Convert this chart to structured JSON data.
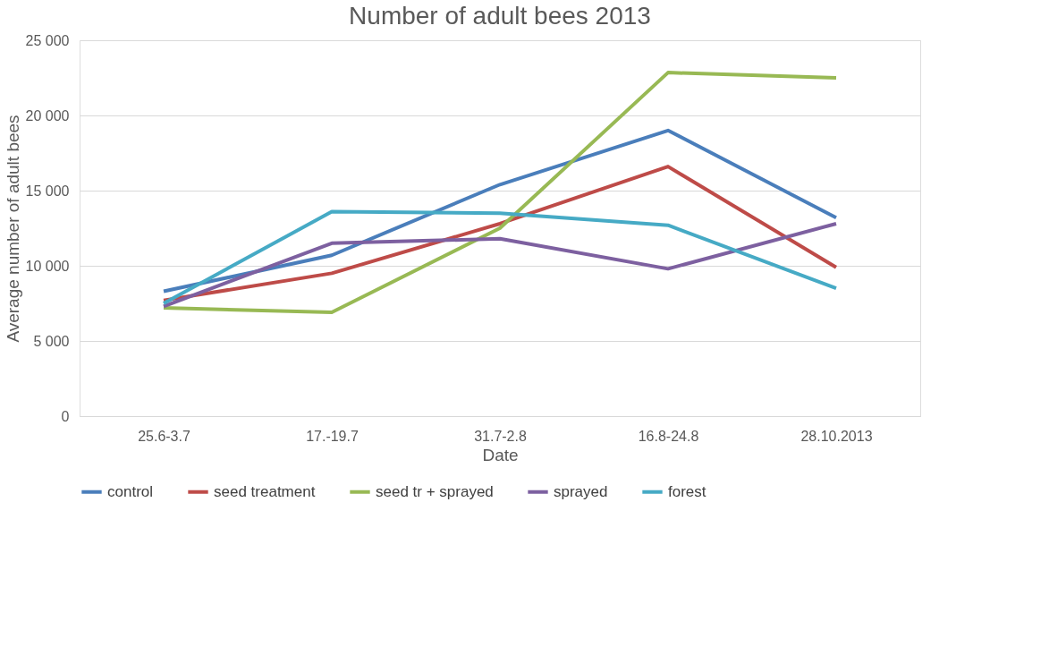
{
  "chart_data": {
    "type": "line",
    "title": "Number of adult bees 2013",
    "xlabel": "Date",
    "ylabel": "Average number of adult bees",
    "categories": [
      "25.6-3.7",
      "17.-19.7",
      "31.7-2.8",
      "16.8-24.8",
      "28.10.2013"
    ],
    "series": [
      {
        "name": "control",
        "color": "#4a7ebb",
        "values": [
          8300,
          10700,
          15400,
          19000,
          13200
        ]
      },
      {
        "name": "seed treatment",
        "color": "#be4b48",
        "values": [
          7700,
          9500,
          12800,
          16600,
          9900
        ]
      },
      {
        "name": "seed tr + sprayed",
        "color": "#98b954",
        "values": [
          7200,
          6900,
          12500,
          22850,
          22500
        ]
      },
      {
        "name": "sprayed",
        "color": "#7d60a0",
        "values": [
          7300,
          11500,
          11800,
          9800,
          12800
        ]
      },
      {
        "name": "forest",
        "color": "#46aac5",
        "values": [
          7500,
          13600,
          13500,
          12700,
          8500
        ]
      }
    ],
    "ylim": [
      0,
      25000
    ],
    "yticks": [
      {
        "value": 0,
        "label": "0"
      },
      {
        "value": 5000,
        "label": "5 000"
      },
      {
        "value": 10000,
        "label": "10 000"
      },
      {
        "value": 15000,
        "label": "15 000"
      },
      {
        "value": 20000,
        "label": "20 000"
      },
      {
        "value": 25000,
        "label": "25 000"
      }
    ],
    "grid": "y",
    "legend": "bottom",
    "marker": "none",
    "line_style": "solid"
  }
}
